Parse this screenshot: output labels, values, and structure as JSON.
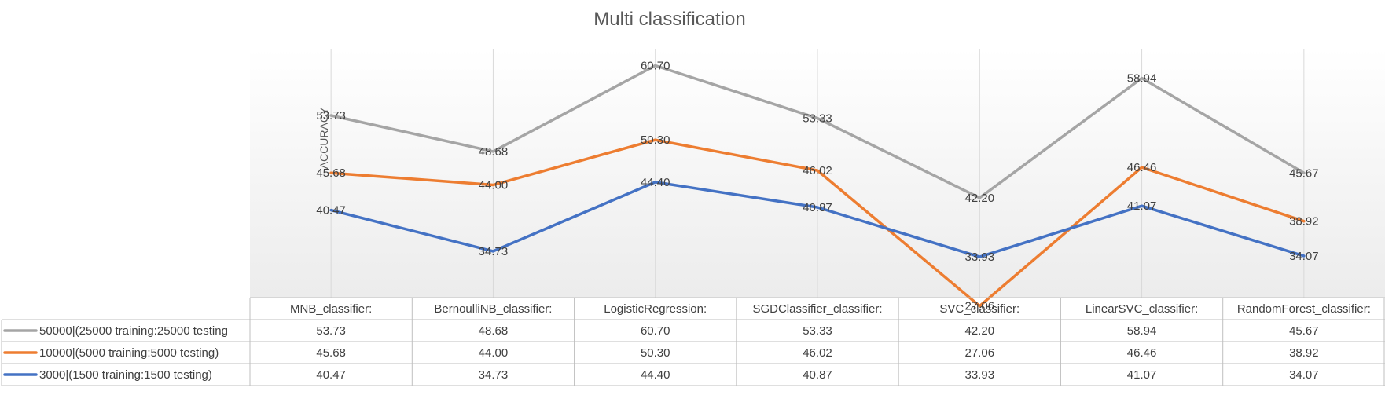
{
  "chart_data": {
    "type": "line",
    "title": "Multi classification",
    "ylabel": "ACCURACY",
    "xlabel": "",
    "categories": [
      "MNB_classifier:",
      "BernoulliNB_classifier:",
      "LogisticRegression:",
      "SGDClassifier_classifier:",
      "SVC_classifier:",
      "LinearSVC_classifier:",
      "RandomForest_classifier:"
    ],
    "series": [
      {
        "name": "50000|(25000 training:25000 testing",
        "color": "#a5a5a5",
        "values": [
          53.73,
          48.68,
          60.7,
          53.33,
          42.2,
          58.94,
          45.67
        ],
        "labels": [
          "53.73",
          "48.68",
          "60.70",
          "53.33",
          "42.20",
          "58.94",
          "45.67"
        ]
      },
      {
        "name": "10000|(5000 training:5000 testing)",
        "color": "#ed7d31",
        "values": [
          45.68,
          44.0,
          50.3,
          46.02,
          27.06,
          46.46,
          38.92
        ],
        "labels": [
          "45.68",
          "44.00",
          "50.30",
          "46.02",
          "27.06",
          "46.46",
          "38.92"
        ]
      },
      {
        "name": "3000|(1500 training:1500 testing)",
        "color": "#4472c4",
        "values": [
          40.47,
          34.73,
          44.4,
          40.87,
          33.93,
          41.07,
          34.07
        ],
        "labels": [
          "40.47",
          "34.73",
          "44.40",
          "40.87",
          "33.93",
          "41.07",
          "34.07"
        ]
      }
    ],
    "data_labels": true,
    "data_table": true,
    "gridlines": "vertical",
    "legend_placement": "data-table-left"
  }
}
